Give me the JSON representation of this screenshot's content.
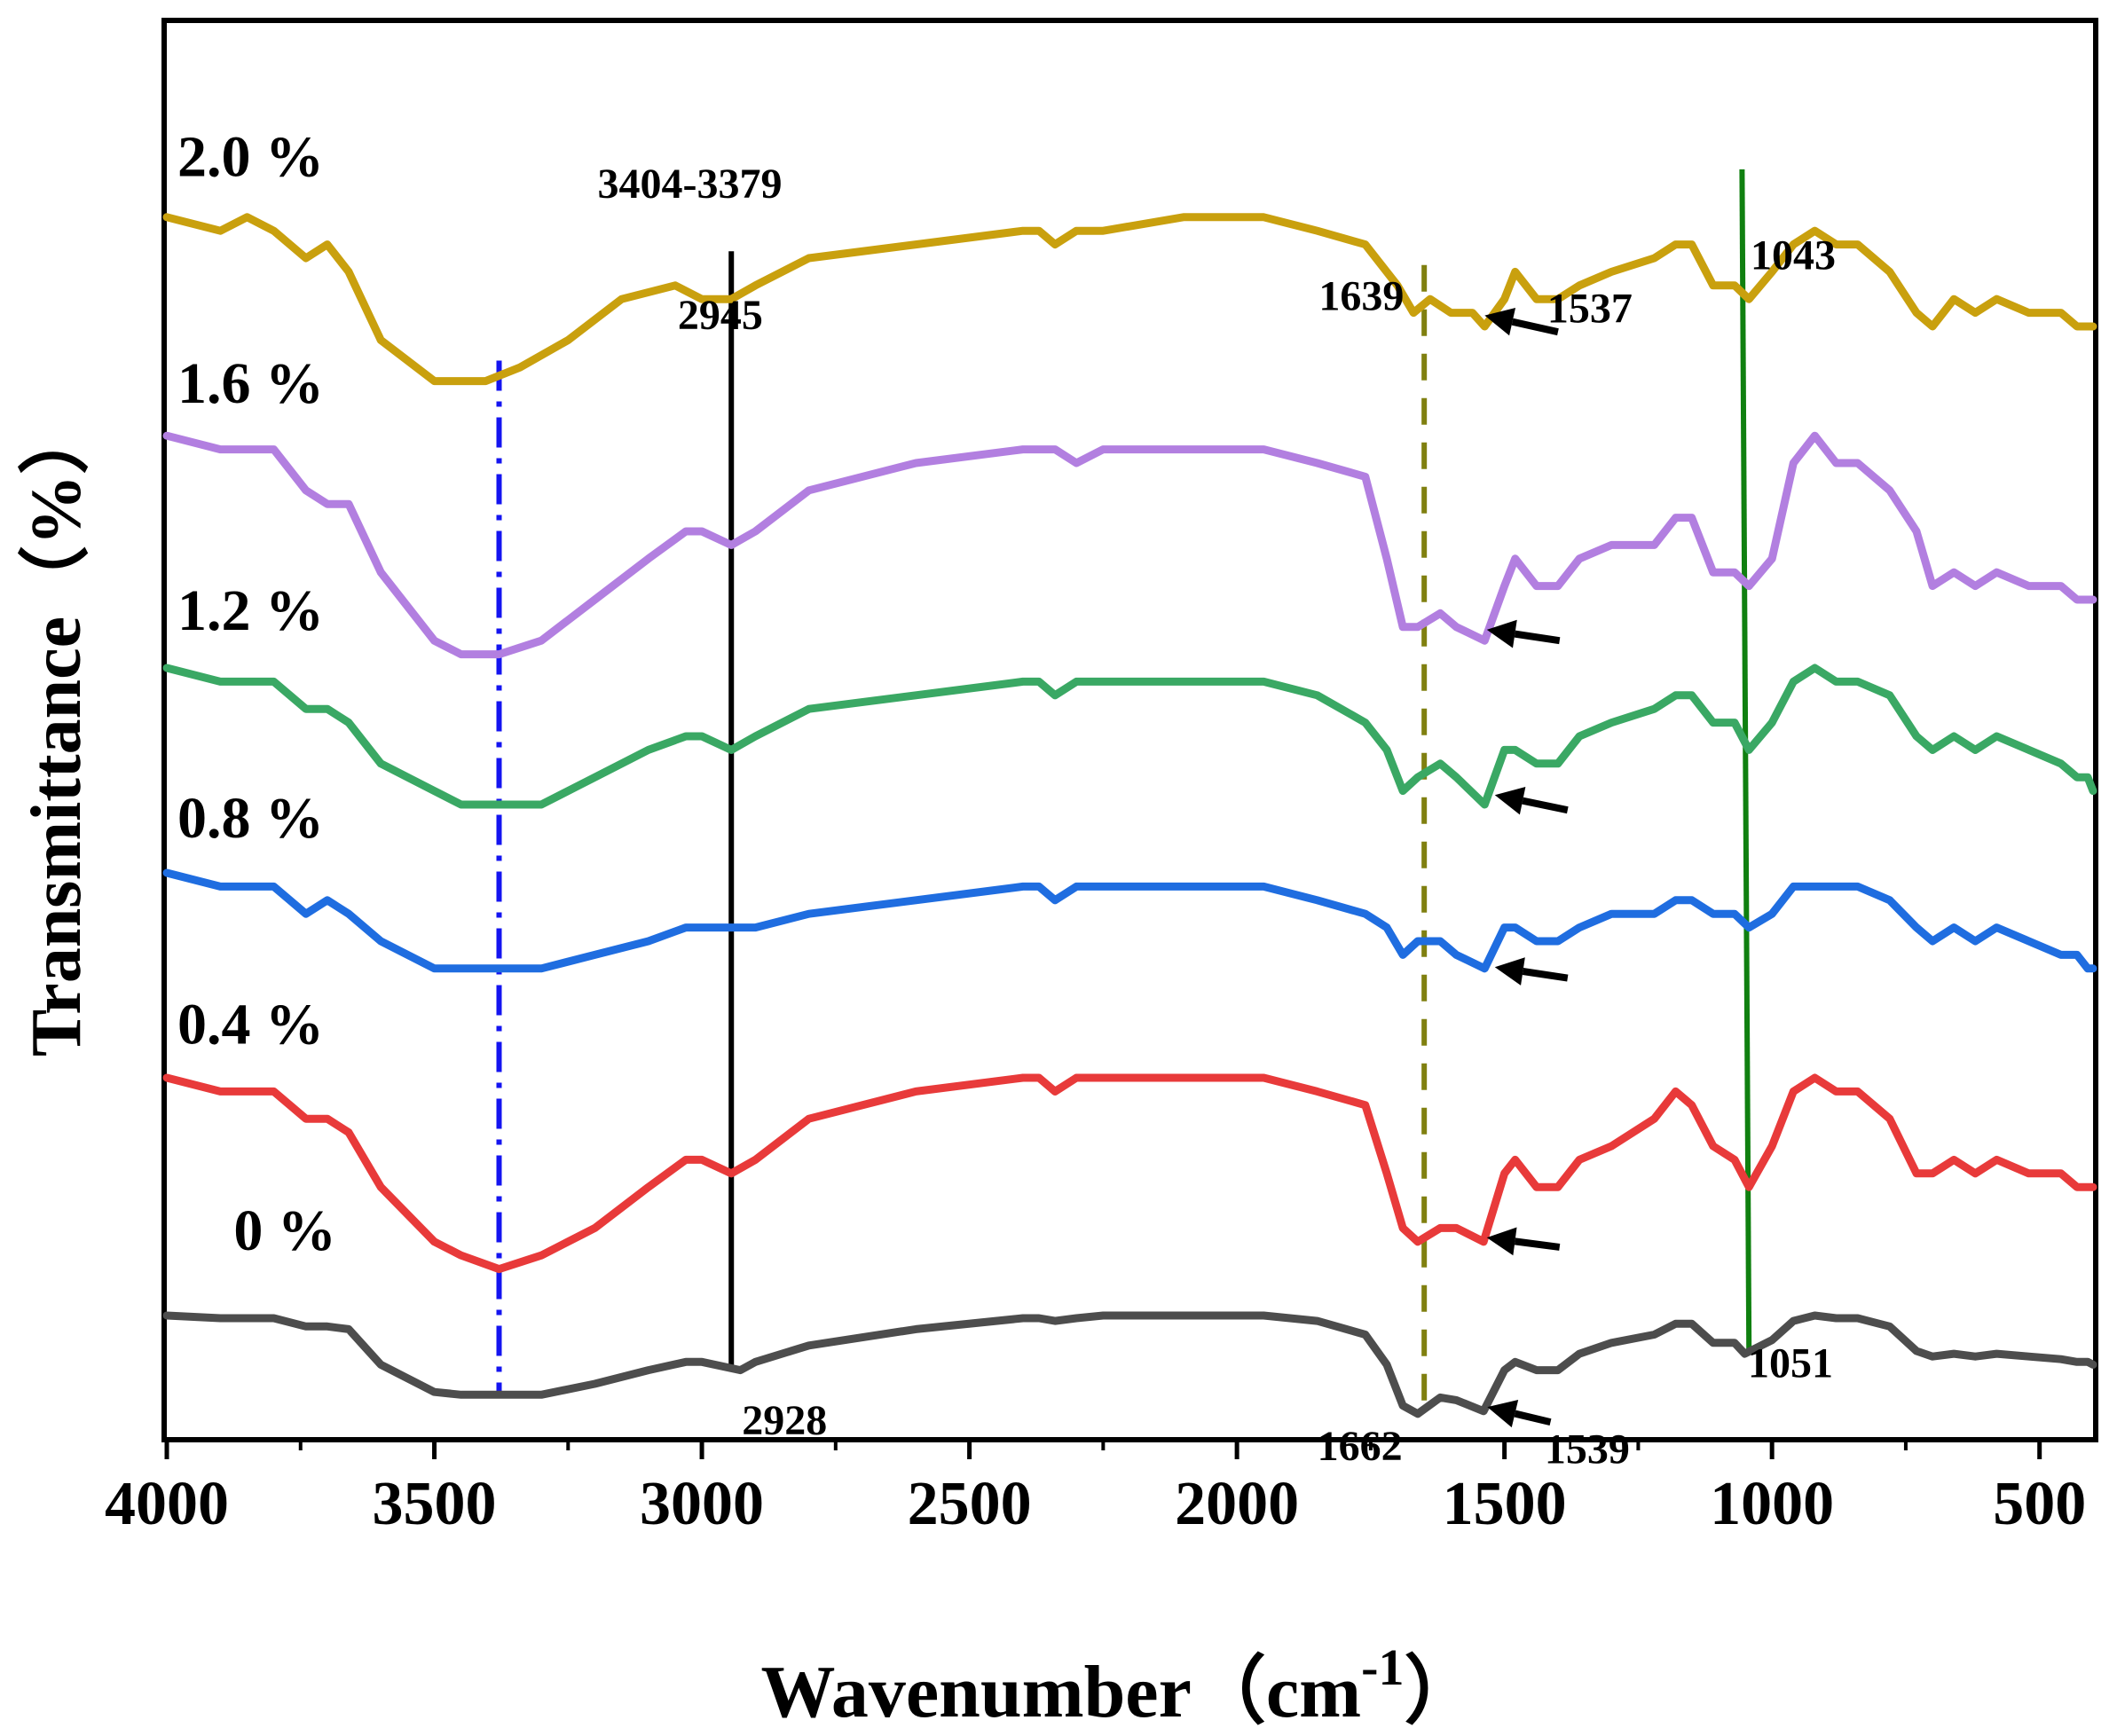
{
  "chart_data": {
    "type": "line",
    "title": "",
    "xlabel": "Wavenumber（cm",
    "xlabel_sup": "-1",
    "xlabel_close": "）",
    "ylabel": "Transmittance（%）",
    "xlim": [
      4000,
      400
    ],
    "ylim": [
      0,
      100
    ],
    "x_ticks": [
      4000,
      3500,
      3000,
      2500,
      2000,
      1500,
      1000,
      500
    ],
    "x_tick_labels": [
      "4000",
      "3500",
      "3000",
      "2500",
      "2000",
      "1500",
      "1000",
      "500"
    ],
    "y_ticks_shown": false,
    "grid": false,
    "legend": "inline labels at left of each curve",
    "series": [
      {
        "name": "2.0 %",
        "color": "#c9a00e",
        "x": [
          4000,
          3900,
          3850,
          3800,
          3740,
          3700,
          3660,
          3600,
          3500,
          3450,
          3404,
          3340,
          3250,
          3150,
          3050,
          3000,
          2945,
          2900,
          2800,
          2600,
          2400,
          2370,
          2340,
          2300,
          2250,
          2100,
          1950,
          1850,
          1760,
          1700,
          1670,
          1639,
          1600,
          1560,
          1537,
          1500,
          1480,
          1440,
          1400,
          1360,
          1300,
          1220,
          1180,
          1150,
          1110,
          1070,
          1043,
          1000,
          960,
          920,
          880,
          840,
          780,
          730,
          700,
          660,
          620,
          580,
          520,
          460,
          430,
          410,
          400
        ],
        "y": [
          88,
          87,
          88,
          87,
          85,
          86,
          84,
          79,
          76,
          76,
          76,
          77,
          79,
          82,
          83,
          82,
          82,
          83,
          85,
          86,
          87,
          87,
          86,
          87,
          87,
          88,
          88,
          87,
          86,
          83,
          81,
          82,
          81,
          81,
          80,
          82,
          84,
          82,
          82,
          83,
          84,
          85,
          86,
          86,
          83,
          83,
          82,
          84,
          86,
          87,
          86,
          86,
          84,
          81,
          80,
          82,
          81,
          82,
          81,
          81,
          80,
          80,
          80
        ]
      },
      {
        "name": "1.6 %",
        "color": "#b27fe0",
        "x": [
          4000,
          3900,
          3850,
          3800,
          3740,
          3700,
          3660,
          3600,
          3500,
          3450,
          3379,
          3300,
          3200,
          3100,
          3030,
          3000,
          2945,
          2900,
          2800,
          2600,
          2400,
          2370,
          2340,
          2300,
          2250,
          2100,
          1950,
          1850,
          1760,
          1720,
          1690,
          1662,
          1620,
          1590,
          1537,
          1500,
          1480,
          1440,
          1400,
          1360,
          1300,
          1220,
          1180,
          1150,
          1110,
          1070,
          1043,
          1000,
          960,
          920,
          880,
          840,
          780,
          730,
          700,
          660,
          620,
          580,
          520,
          460,
          430,
          410,
          400
        ],
        "y": [
          72,
          71,
          71,
          71,
          68,
          67,
          67,
          62,
          57,
          56,
          56,
          57,
          60,
          63,
          65,
          65,
          64,
          65,
          68,
          70,
          71,
          71,
          71,
          70,
          71,
          71,
          71,
          70,
          69,
          63,
          58,
          58,
          59,
          58,
          57,
          61,
          63,
          61,
          61,
          63,
          64,
          64,
          66,
          66,
          62,
          62,
          61,
          63,
          70,
          72,
          70,
          70,
          68,
          65,
          61,
          62,
          61,
          62,
          61,
          61,
          60,
          60,
          60
        ]
      },
      {
        "name": "1.2 %",
        "color": "#3aa864",
        "x": [
          4000,
          3900,
          3850,
          3800,
          3740,
          3700,
          3660,
          3600,
          3500,
          3450,
          3379,
          3300,
          3200,
          3100,
          3030,
          3000,
          2945,
          2900,
          2800,
          2600,
          2400,
          2370,
          2340,
          2300,
          2250,
          2100,
          1950,
          1850,
          1760,
          1720,
          1690,
          1662,
          1620,
          1590,
          1537,
          1500,
          1480,
          1440,
          1400,
          1360,
          1300,
          1220,
          1180,
          1150,
          1110,
          1070,
          1043,
          1000,
          960,
          920,
          880,
          840,
          780,
          730,
          700,
          660,
          620,
          580,
          520,
          460,
          430,
          410,
          400
        ],
        "y": [
          55,
          54,
          54,
          54,
          52,
          52,
          51,
          48,
          46,
          45,
          45,
          45,
          47,
          49,
          50,
          50,
          49,
          50,
          52,
          53,
          54,
          54,
          53,
          54,
          54,
          54,
          54,
          53,
          51,
          49,
          46,
          47,
          48,
          47,
          45,
          49,
          49,
          48,
          48,
          50,
          51,
          52,
          53,
          53,
          51,
          51,
          49,
          51,
          54,
          55,
          54,
          54,
          53,
          50,
          49,
          50,
          49,
          50,
          49,
          48,
          47,
          47,
          46
        ]
      },
      {
        "name": "0.8 %",
        "color": "#1f6de0",
        "x": [
          4000,
          3900,
          3850,
          3800,
          3740,
          3700,
          3660,
          3600,
          3500,
          3450,
          3379,
          3300,
          3200,
          3100,
          3030,
          3000,
          2945,
          2900,
          2800,
          2600,
          2400,
          2370,
          2340,
          2300,
          2250,
          2100,
          1950,
          1850,
          1760,
          1720,
          1690,
          1662,
          1620,
          1590,
          1537,
          1500,
          1480,
          1440,
          1400,
          1360,
          1300,
          1220,
          1180,
          1150,
          1110,
          1070,
          1043,
          1000,
          960,
          920,
          880,
          840,
          780,
          730,
          700,
          660,
          620,
          580,
          520,
          460,
          430,
          410,
          400
        ],
        "y": [
          40,
          39,
          39,
          39,
          37,
          38,
          37,
          35,
          33,
          33,
          33,
          33,
          34,
          35,
          36,
          36,
          36,
          36,
          37,
          38,
          39,
          39,
          38,
          39,
          39,
          39,
          39,
          38,
          37,
          36,
          34,
          35,
          35,
          34,
          33,
          36,
          36,
          35,
          35,
          36,
          37,
          37,
          38,
          38,
          37,
          37,
          36,
          37,
          39,
          39,
          39,
          39,
          38,
          36,
          35,
          36,
          35,
          36,
          35,
          34,
          34,
          33,
          33
        ]
      },
      {
        "name": "0.4 %",
        "color": "#e83a3a",
        "x": [
          4000,
          3900,
          3850,
          3800,
          3740,
          3700,
          3660,
          3600,
          3500,
          3450,
          3379,
          3300,
          3200,
          3100,
          3030,
          3000,
          2945,
          2900,
          2800,
          2600,
          2400,
          2370,
          2340,
          2300,
          2250,
          2100,
          1950,
          1850,
          1760,
          1720,
          1690,
          1662,
          1620,
          1590,
          1539,
          1500,
          1480,
          1440,
          1400,
          1360,
          1300,
          1220,
          1180,
          1150,
          1110,
          1070,
          1043,
          1000,
          960,
          920,
          880,
          840,
          780,
          730,
          700,
          660,
          620,
          580,
          520,
          460,
          430,
          410,
          400
        ],
        "y": [
          25,
          24,
          24,
          24,
          22,
          22,
          21,
          17,
          13,
          12,
          11,
          12,
          14,
          17,
          19,
          19,
          18,
          19,
          22,
          24,
          25,
          25,
          24,
          25,
          25,
          25,
          25,
          24,
          23,
          18,
          14,
          13,
          14,
          14,
          13,
          18,
          19,
          17,
          17,
          19,
          20,
          22,
          24,
          23,
          20,
          19,
          17,
          20,
          24,
          25,
          24,
          24,
          22,
          18,
          18,
          19,
          18,
          19,
          18,
          18,
          17,
          17,
          17
        ]
      },
      {
        "name": "0 %",
        "color": "#4d4d4d",
        "x": [
          4000,
          3900,
          3850,
          3800,
          3740,
          3700,
          3660,
          3600,
          3500,
          3450,
          3379,
          3300,
          3200,
          3100,
          3030,
          3000,
          2928,
          2900,
          2800,
          2600,
          2400,
          2370,
          2340,
          2300,
          2250,
          2100,
          1950,
          1850,
          1760,
          1720,
          1690,
          1662,
          1620,
          1590,
          1539,
          1500,
          1480,
          1440,
          1400,
          1360,
          1300,
          1220,
          1180,
          1150,
          1110,
          1070,
          1051,
          1000,
          960,
          920,
          880,
          840,
          780,
          730,
          700,
          660,
          620,
          580,
          520,
          460,
          430,
          410,
          400
        ],
        "y": [
          7.6,
          7.4,
          7.4,
          7.4,
          6.8,
          6.8,
          6.6,
          4.0,
          2.0,
          1.8,
          1.8,
          1.8,
          2.6,
          3.6,
          4.2,
          4.2,
          3.6,
          4.2,
          5.4,
          6.6,
          7.4,
          7.4,
          7.2,
          7.4,
          7.6,
          7.6,
          7.6,
          7.2,
          6.2,
          4.0,
          1.0,
          0.4,
          1.6,
          1.4,
          0.6,
          3.6,
          4.2,
          3.6,
          3.6,
          4.8,
          5.6,
          6.2,
          7.0,
          7.0,
          5.6,
          5.6,
          4.8,
          5.8,
          7.2,
          7.6,
          7.4,
          7.4,
          6.8,
          5.0,
          4.6,
          4.8,
          4.6,
          4.8,
          4.6,
          4.4,
          4.2,
          4.2,
          4.0
        ]
      }
    ],
    "reference_lines": [
      {
        "name": "line-3404-3379",
        "x1": 3379,
        "x2": 3379,
        "y_top": 77.5,
        "y_bottom": 1.8,
        "style": "dash-dot",
        "color": "#1414f0"
      },
      {
        "name": "line-2928-2945",
        "x1": 2945,
        "x2": 2945,
        "y_top": 85.5,
        "y_bottom": 3.6,
        "style": "solid",
        "color": "#000000"
      },
      {
        "name": "line-1662-1639",
        "x1": 1650,
        "x2": 1650,
        "y_top": 84.5,
        "y_bottom": 0.4,
        "style": "dashed",
        "color": "#808010"
      },
      {
        "name": "line-1051-1043",
        "x1": 1056,
        "x2": 1043,
        "y_top": 91.5,
        "y_bottom": 4.8,
        "style": "solid",
        "color": "#108010"
      }
    ],
    "annotations": [
      {
        "text": "3404-3379",
        "x": 3195,
        "y": 89.4
      },
      {
        "text": "2945",
        "x": 3045,
        "y": 79.8
      },
      {
        "text": "2928",
        "x": 2925,
        "y": -1.1
      },
      {
        "text": "1639",
        "x": 1847,
        "y": 81.2
      },
      {
        "text": "1537",
        "x": 1420,
        "y": 80.3
      },
      {
        "text": "1043",
        "x": 1040,
        "y": 84.2
      },
      {
        "text": "1662",
        "x": 1850,
        "y": -3.0
      },
      {
        "text": "1539",
        "x": 1425,
        "y": -3.2
      },
      {
        "text": "1051",
        "x": 1045,
        "y": 3.1
      }
    ],
    "arrows": [
      {
        "name": "arrow-2.0",
        "x_tail": 1400,
        "y_tail": 79.6,
        "x_head": 1537,
        "y_head": 80.8
      },
      {
        "name": "arrow-1.6",
        "x_tail": 1397,
        "y_tail": 57.0,
        "x_head": 1533,
        "y_head": 57.8
      },
      {
        "name": "arrow-1.2",
        "x_tail": 1382,
        "y_tail": 44.6,
        "x_head": 1518,
        "y_head": 45.7
      },
      {
        "name": "arrow-0.8",
        "x_tail": 1382,
        "y_tail": 32.3,
        "x_head": 1518,
        "y_head": 33.1
      },
      {
        "name": "arrow-0.4",
        "x_tail": 1397,
        "y_tail": 12.6,
        "x_head": 1533,
        "y_head": 13.3
      },
      {
        "name": "arrow-0",
        "x_tail": 1414,
        "y_tail": -0.2,
        "x_head": 1532,
        "y_head": 0.9
      }
    ],
    "series_labels": [
      {
        "text": "2.0 %",
        "x": 3980,
        "y": 91.0
      },
      {
        "text": "1.6 %",
        "x": 3980,
        "y": 74.4
      },
      {
        "text": "1.2 %",
        "x": 3980,
        "y": 57.8
      },
      {
        "text": "0.8 %",
        "x": 3980,
        "y": 42.6
      },
      {
        "text": "0.4 %",
        "x": 3980,
        "y": 27.5
      },
      {
        "text": "0 %",
        "x": 3875,
        "y": 12.4
      }
    ]
  }
}
